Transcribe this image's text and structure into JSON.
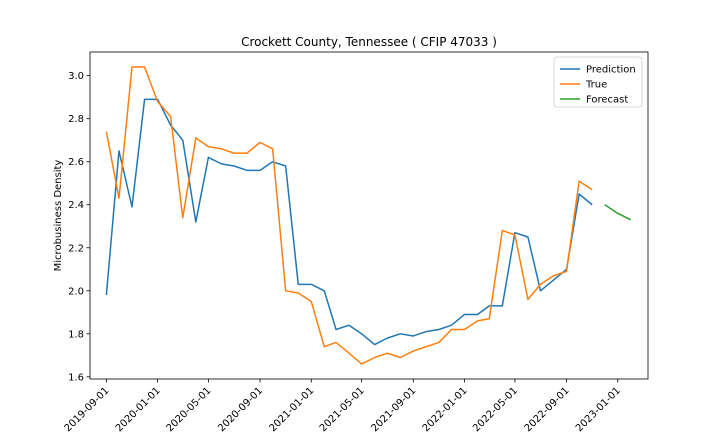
{
  "chart_data": {
    "type": "line",
    "title": "Crockett County, Tennessee ( CFIP 47033 )",
    "xlabel": "",
    "ylabel": "Microbusiness Density",
    "ylim": [
      1.59,
      3.11
    ],
    "xlim": [
      "2019-07-24",
      "2023-03-14"
    ],
    "yticks": [
      "1.6",
      "1.8",
      "2.0",
      "2.2",
      "2.4",
      "2.6",
      "2.8",
      "3.0"
    ],
    "xticks": [
      "2019-09-01",
      "2020-01-01",
      "2020-05-01",
      "2020-09-01",
      "2021-01-01",
      "2021-05-01",
      "2021-09-01",
      "2022-01-01",
      "2022-05-01",
      "2022-09-01",
      "2023-01-01"
    ],
    "grid": false,
    "legend_position": "top-right",
    "series": [
      {
        "name": "Prediction",
        "color": "#1f77b4",
        "x": [
          "2019-09-01",
          "2019-10-01",
          "2019-11-01",
          "2019-12-01",
          "2020-01-01",
          "2020-02-01",
          "2020-03-01",
          "2020-04-01",
          "2020-05-01",
          "2020-06-01",
          "2020-07-01",
          "2020-08-01",
          "2020-09-01",
          "2020-10-01",
          "2020-11-01",
          "2020-12-01",
          "2021-01-01",
          "2021-02-01",
          "2021-03-01",
          "2021-04-01",
          "2021-05-01",
          "2021-06-01",
          "2021-07-01",
          "2021-08-01",
          "2021-09-01",
          "2021-10-01",
          "2021-11-01",
          "2021-12-01",
          "2022-01-01",
          "2022-02-01",
          "2022-03-01",
          "2022-04-01",
          "2022-05-01",
          "2022-06-01",
          "2022-07-01",
          "2022-08-01",
          "2022-09-01",
          "2022-10-01",
          "2022-11-01"
        ],
        "values": [
          1.98,
          2.65,
          2.39,
          2.89,
          2.89,
          2.77,
          2.7,
          2.32,
          2.62,
          2.59,
          2.58,
          2.56,
          2.56,
          2.6,
          2.58,
          2.03,
          2.03,
          2.0,
          1.82,
          1.84,
          1.8,
          1.75,
          1.78,
          1.8,
          1.79,
          1.81,
          1.82,
          1.84,
          1.89,
          1.89,
          1.93,
          1.93,
          2.27,
          2.25,
          2.0,
          2.05,
          2.1,
          2.45,
          2.4
        ]
      },
      {
        "name": "True",
        "color": "#ff7f0e",
        "x": [
          "2019-09-01",
          "2019-10-01",
          "2019-11-01",
          "2019-12-01",
          "2020-01-01",
          "2020-02-01",
          "2020-03-01",
          "2020-04-01",
          "2020-05-01",
          "2020-06-01",
          "2020-07-01",
          "2020-08-01",
          "2020-09-01",
          "2020-10-01",
          "2020-11-01",
          "2020-12-01",
          "2021-01-01",
          "2021-02-01",
          "2021-03-01",
          "2021-04-01",
          "2021-05-01",
          "2021-06-01",
          "2021-07-01",
          "2021-08-01",
          "2021-09-01",
          "2021-10-01",
          "2021-11-01",
          "2021-12-01",
          "2022-01-01",
          "2022-02-01",
          "2022-03-01",
          "2022-04-01",
          "2022-05-01",
          "2022-06-01",
          "2022-07-01",
          "2022-08-01",
          "2022-09-01",
          "2022-10-01",
          "2022-11-01"
        ],
        "values": [
          2.74,
          2.43,
          3.04,
          3.04,
          2.88,
          2.81,
          2.34,
          2.71,
          2.67,
          2.66,
          2.64,
          2.64,
          2.69,
          2.66,
          2.0,
          1.99,
          1.95,
          1.74,
          1.76,
          1.71,
          1.66,
          1.69,
          1.71,
          1.69,
          1.72,
          1.74,
          1.76,
          1.82,
          1.82,
          1.86,
          1.87,
          2.28,
          2.26,
          1.96,
          2.03,
          2.07,
          2.09,
          2.51,
          2.47
        ]
      },
      {
        "name": "Forecast",
        "color": "#2ca02c",
        "x": [
          "2022-12-01",
          "2023-01-01",
          "2023-02-01"
        ],
        "values": [
          2.4,
          2.36,
          2.33
        ]
      }
    ]
  }
}
